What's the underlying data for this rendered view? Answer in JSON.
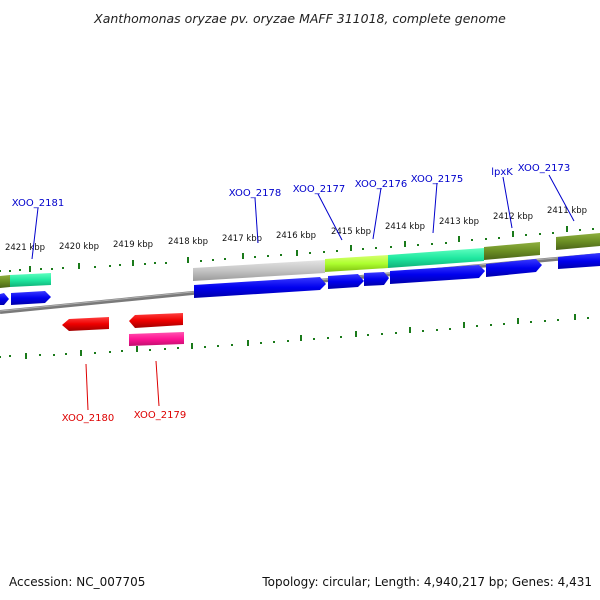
{
  "title": "Xanthomonas oryzae pv. oryzae MAFF 311018, complete genome",
  "footer": {
    "accession": "Accession: NC_007705",
    "stats": "Topology: circular; Length: 4,940,217 bp; Genes: 4,431"
  },
  "kbp_labels": [
    "2421 kbp",
    "2420 kbp",
    "2419 kbp",
    "2418 kbp",
    "2417 kbp",
    "2416 kbp",
    "2415 kbp",
    "2414 kbp",
    "2413 kbp",
    "2412 kbp",
    "2411 kbp"
  ],
  "gene_labels_top": [
    "XOO_2181",
    "XOO_2178",
    "XOO_2177",
    "XOO_2176",
    "XOO_2175",
    "lpxK",
    "XOO_2173"
  ],
  "gene_labels_bottom": [
    "XOO_2180",
    "XOO_2179"
  ],
  "colors": {
    "forward_gene": "#0000ee",
    "reverse_gene": "#ee0000",
    "label_forward": "#0000cc",
    "label_reverse": "#dd0000",
    "tick": "#1a7a1a",
    "backbone": "#808080",
    "olive": "#6b8e23",
    "teal": "#20e8a0",
    "lime": "#adff2f",
    "gray_band": "#c0c0c0",
    "pink": "#ff1493"
  }
}
